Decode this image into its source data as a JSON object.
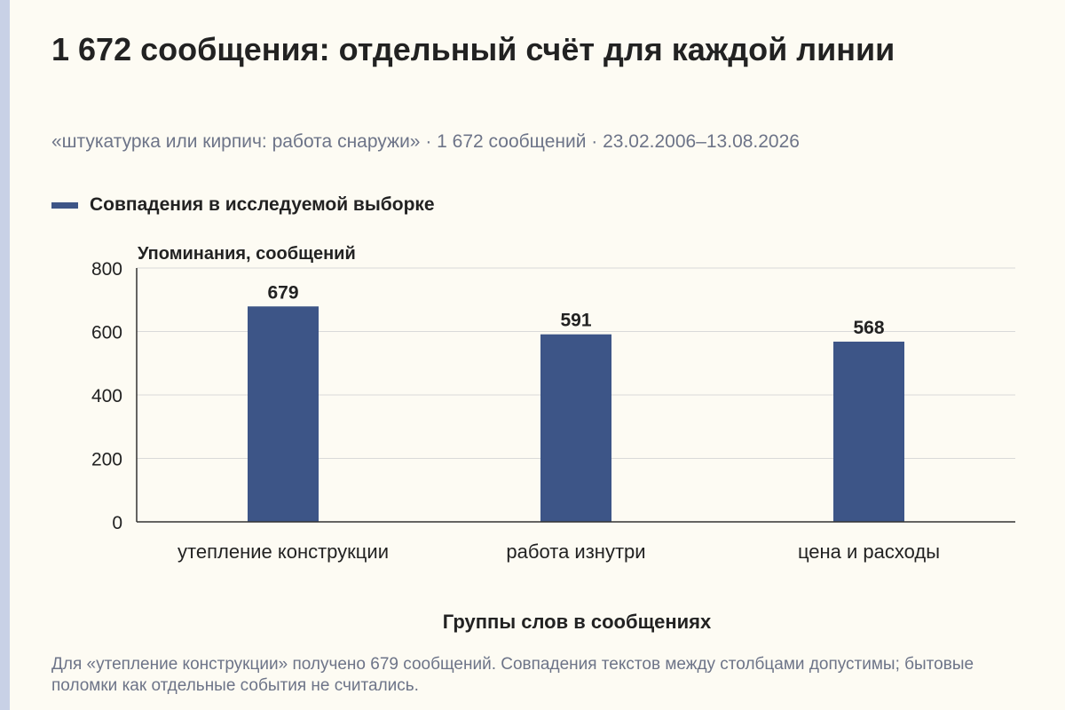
{
  "title": "1 672 сообщения: отдельный счёт для каждой линии",
  "subtitle": "«штукатурка или кирпич: работа снаружи» · 1 672 сообщений · 23.02.2006–13.08.2026",
  "footnote": "Для «утепление конструкции» получено 679 сообщений. Совпадения текстов между столбцами допустимы; бытовые поломки как отдельные события не считались.",
  "colors": {
    "bar": "#3d5587",
    "background": "#fdfbf3",
    "grid": "#d9d9d9",
    "axis": "#333333",
    "muted_text": "#6d7488",
    "text": "#222222"
  },
  "chart_data": {
    "type": "bar",
    "categories": [
      "утепление конструкции",
      "работа изнутри",
      "цена и расходы"
    ],
    "series": [
      {
        "name": "Совпадения в исследуемой выборке",
        "values": [
          679,
          591,
          568
        ]
      }
    ],
    "xlabel": "Группы слов в сообщениях",
    "ylabel": "Упоминания, сообщений",
    "ylim": [
      0,
      800
    ],
    "yticks": [
      0,
      200,
      400,
      600,
      800
    ],
    "grid": true,
    "legend_position": "top-left",
    "data_labels": true
  }
}
